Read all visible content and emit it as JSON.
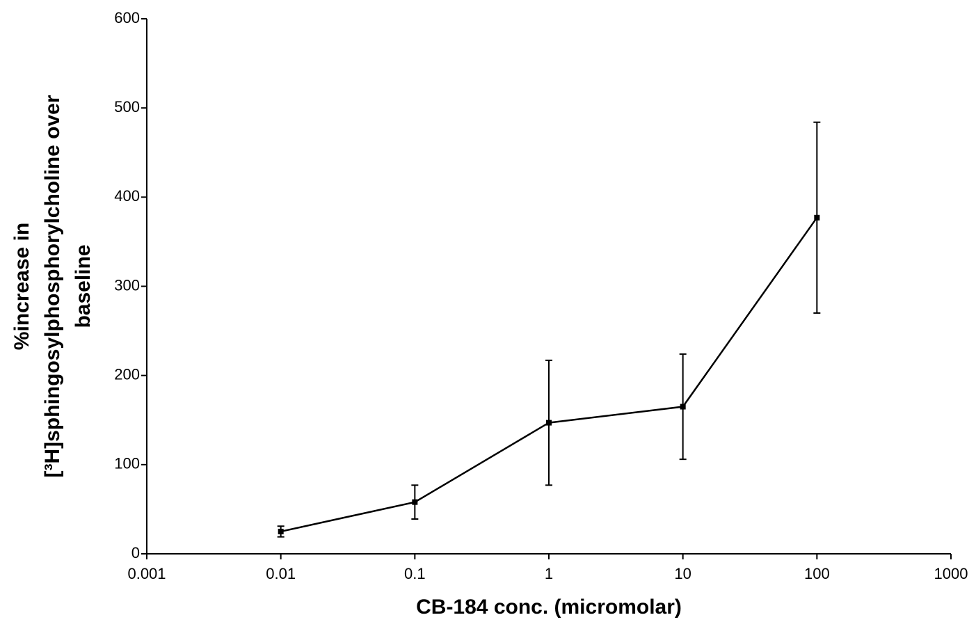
{
  "chart_data": {
    "type": "line",
    "xlabel": "CB-184 conc. (micromolar)",
    "ylabel": [
      "%increase in",
      "[³H]sphingosylphosphorylcholine over",
      "baseline"
    ],
    "x": [
      0.01,
      0.1,
      1,
      10,
      100
    ],
    "series": [
      {
        "color": "#000000",
        "values": [
          25,
          58,
          147,
          165,
          377
        ],
        "errors": [
          6,
          19,
          70,
          59,
          107
        ]
      }
    ],
    "xscale": "log",
    "xlim": [
      0.001,
      1000
    ],
    "xticks": [
      0.001,
      0.01,
      0.1,
      1,
      10,
      100,
      1000
    ],
    "ylim": [
      0,
      600
    ],
    "yticks": [
      0,
      100,
      200,
      300,
      400,
      500,
      600
    ],
    "grid": false
  }
}
